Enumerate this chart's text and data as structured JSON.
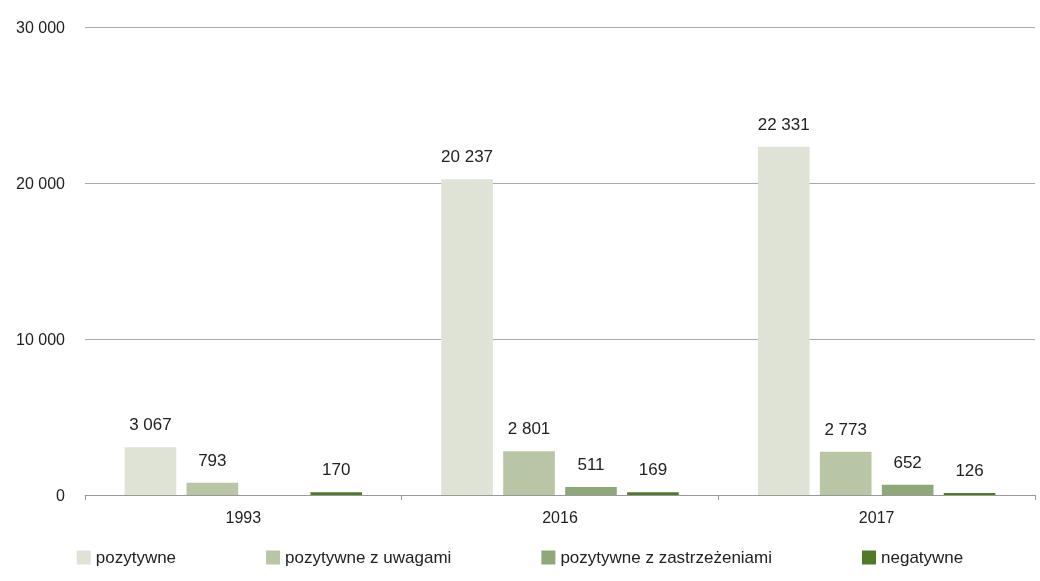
{
  "chart_data": {
    "type": "bar",
    "categories": [
      "1993",
      "2016",
      "2017"
    ],
    "series": [
      {
        "name": "pozytywne",
        "color": "#dfe3d5",
        "values": [
          3067,
          20237,
          22331
        ],
        "value_labels": [
          "3 067",
          "20 237",
          "22 331"
        ]
      },
      {
        "name": "pozytywne z uwagami",
        "color": "#b8c6a6",
        "values": [
          793,
          2801,
          2773
        ],
        "value_labels": [
          "793",
          "2 801",
          "2 773"
        ]
      },
      {
        "name": "pozytywne z zastrzeżeniami",
        "color": "#8fa877",
        "values": [
          null,
          511,
          652
        ],
        "value_labels": [
          null,
          "511",
          "652"
        ]
      },
      {
        "name": "negatywne",
        "color": "#4f7a28",
        "values": [
          170,
          169,
          126
        ],
        "value_labels": [
          "170",
          "169",
          "126"
        ]
      }
    ],
    "ylim": [
      0,
      30000
    ],
    "yticks": [
      {
        "value": 0,
        "label": "0"
      },
      {
        "value": 10000,
        "label": "10 000"
      },
      {
        "value": 20000,
        "label": "20 000"
      },
      {
        "value": 30000,
        "label": "30 000"
      }
    ],
    "grid": "y",
    "legend": "bottom"
  }
}
